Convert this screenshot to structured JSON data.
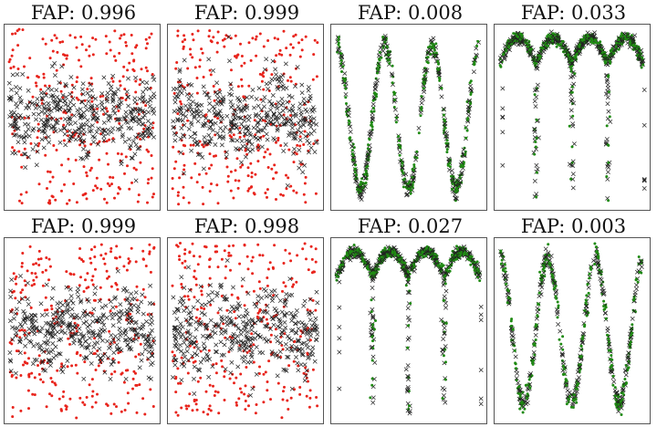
{
  "chart_data": [
    {
      "type": "scatter",
      "title": "FAP: 0.996",
      "pattern": "noise",
      "dot_color": "#e8241c",
      "cross_color": "#222222",
      "seed": 11
    },
    {
      "type": "scatter",
      "title": "FAP: 0.999",
      "pattern": "noise",
      "dot_color": "#e8241c",
      "cross_color": "#222222",
      "seed": 23
    },
    {
      "type": "scatter",
      "title": "FAP: 0.008",
      "pattern": "sine",
      "cycles": 3,
      "dot_color": "#1f8a13",
      "cross_color": "#222222",
      "seed": 37
    },
    {
      "type": "scatter",
      "title": "FAP: 0.033",
      "pattern": "eclipse",
      "eclipses": 4,
      "dot_color": "#1f8a13",
      "cross_color": "#222222",
      "seed": 41
    },
    {
      "type": "scatter",
      "title": "FAP: 0.999",
      "pattern": "noise",
      "dot_color": "#e8241c",
      "cross_color": "#222222",
      "seed": 53
    },
    {
      "type": "scatter",
      "title": "FAP: 0.998",
      "pattern": "noise",
      "dot_color": "#e8241c",
      "cross_color": "#222222",
      "seed": 67
    },
    {
      "type": "scatter",
      "title": "FAP: 0.027",
      "pattern": "eclipse",
      "eclipses": 4,
      "dot_color": "#1f8a13",
      "cross_color": "#222222",
      "seed": 71
    },
    {
      "type": "scatter",
      "title": "FAP: 0.003",
      "pattern": "sine",
      "cycles": 3,
      "dot_color": "#1f8a13",
      "cross_color": "#222222",
      "seed": 83
    }
  ]
}
